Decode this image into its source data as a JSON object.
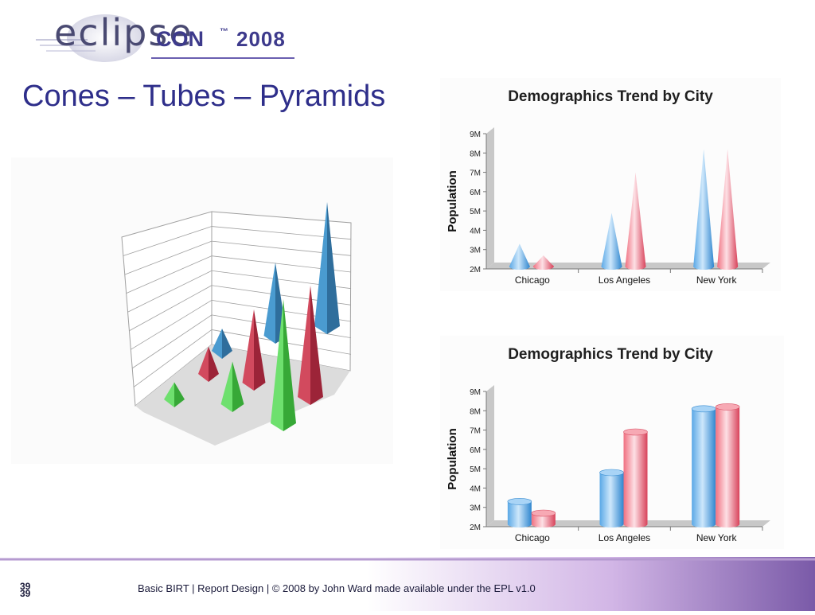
{
  "logo": {
    "word": "eclipse",
    "con": "CON",
    "tm": "™",
    "year": "2008"
  },
  "slide_title": "Cones – Tubes – Pyramids",
  "footer": {
    "page_number": "39",
    "page_number_repeat": "39",
    "text": "Basic BIRT  |  Report Design  |  © 2008 by John Ward made available under the EPL v1.0"
  },
  "colors": {
    "series_blue": "#5aa8e6",
    "series_red": "#f07080",
    "pyr_blue": "#3b84b8",
    "pyr_red": "#c8394f",
    "pyr_green": "#4fcc4f",
    "title_blue": "#2e2e8a"
  },
  "chart_data": [
    {
      "type": "bar",
      "style": "3d-pyramids",
      "title": "",
      "categories": [
        "",
        "",
        ""
      ],
      "series": [
        {
          "color": "blue",
          "values": [
            1,
            3,
            5
          ]
        },
        {
          "color": "red",
          "values": [
            1.2,
            3,
            4.5
          ]
        },
        {
          "color": "green",
          "values": [
            0.8,
            1.8,
            5
          ]
        }
      ],
      "grid": true,
      "legend": "none"
    },
    {
      "type": "bar",
      "style": "cones",
      "title": "Demographics Trend by City",
      "ylabel": "Population",
      "categories": [
        "Chicago",
        "Los Angeles",
        "New York"
      ],
      "yticks": [
        "2M",
        "3M",
        "4M",
        "5M",
        "6M",
        "7M",
        "8M",
        "9M"
      ],
      "ylim": [
        2,
        9
      ],
      "series": [
        {
          "color": "blue",
          "values": [
            3.3,
            4.9,
            8.2
          ]
        },
        {
          "color": "red",
          "values": [
            2.7,
            7.0,
            8.2
          ]
        }
      ],
      "grid": false,
      "legend": "none"
    },
    {
      "type": "bar",
      "style": "tubes",
      "title": "Demographics Trend by City",
      "ylabel": "Population",
      "categories": [
        "Chicago",
        "Los Angeles",
        "New York"
      ],
      "yticks": [
        "2M",
        "3M",
        "4M",
        "5M",
        "6M",
        "7M",
        "8M",
        "9M"
      ],
      "ylim": [
        2,
        9
      ],
      "series": [
        {
          "color": "blue",
          "values": [
            3.3,
            4.8,
            8.1
          ]
        },
        {
          "color": "red",
          "values": [
            2.7,
            6.9,
            8.2
          ]
        }
      ],
      "grid": false,
      "legend": "none"
    }
  ]
}
